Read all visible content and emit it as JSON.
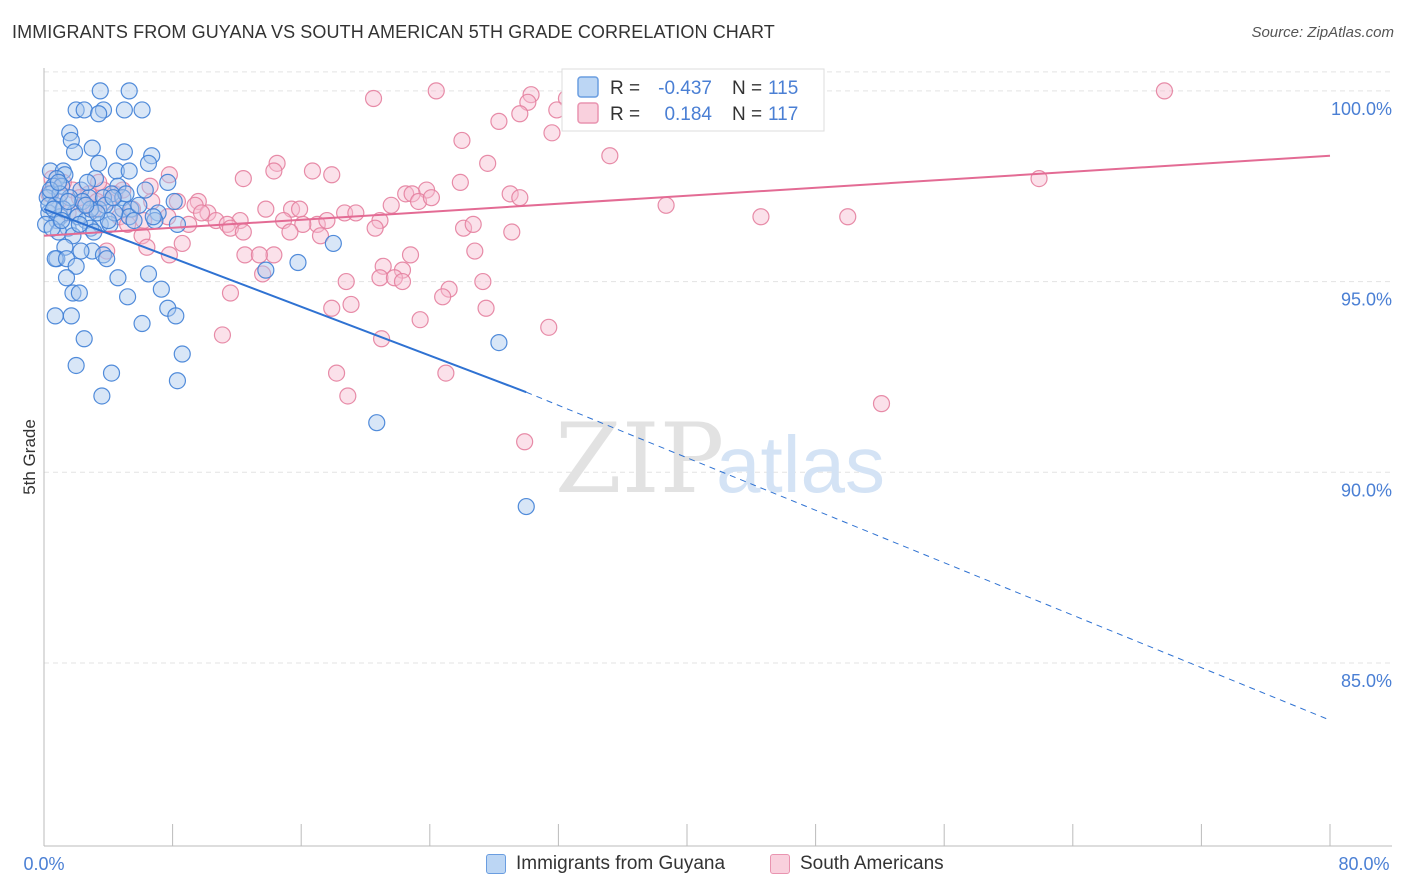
{
  "title": "IMMIGRANTS FROM GUYANA VS SOUTH AMERICAN 5TH GRADE CORRELATION CHART",
  "source": "Source: ZipAtlas.com",
  "watermark": {
    "zip": "ZIP",
    "atlas": "atlas"
  },
  "colors": {
    "blue_fill": "#a8c8ee",
    "blue_stroke": "#3f7fd6",
    "blue_line": "#2f72d2",
    "pink_fill": "#f6bdd0",
    "pink_stroke": "#e4809f",
    "pink_line": "#e36b94",
    "axis_label": "#4a7fd4",
    "grid": "#e3e3e3"
  },
  "legend": {
    "blue": {
      "r_label": "R =",
      "r_value": "-0.437",
      "n_label": "N =",
      "n_value": "115"
    },
    "pink": {
      "r_label": "R =",
      "r_value": "0.184",
      "n_label": "N =",
      "n_value": "117"
    }
  },
  "bottom_legend": {
    "blue_label": "Immigrants from Guyana",
    "pink_label": "South Americans"
  },
  "chart_data": {
    "type": "scatter",
    "title": "IMMIGRANTS FROM GUYANA VS SOUTH AMERICAN 5TH GRADE CORRELATION CHART",
    "xlabel": "",
    "ylabel": "5th Grade",
    "xlim": [
      0,
      80
    ],
    "ylim": [
      80.2,
      100.6
    ],
    "x_tick_labels": [
      "0.0%",
      "80.0%"
    ],
    "y_ticks": [
      85,
      90,
      95,
      100
    ],
    "y_tick_labels": [
      "85.0%",
      "90.0%",
      "95.0%",
      "100.0%"
    ],
    "grid": true,
    "legend_position": "top-center",
    "series": [
      {
        "name": "Immigrants from Guyana",
        "color": "#3f7fd6",
        "trend": {
          "x1": 0.0,
          "y1": 96.9,
          "x2": 30.0,
          "y2": 92.1,
          "dashed_to_x": 80.0,
          "dashed_to_y": 83.5
        },
        "points": [
          [
            3.5,
            100.0
          ],
          [
            5.3,
            100.0
          ],
          [
            3.7,
            99.5
          ],
          [
            2.0,
            99.5
          ],
          [
            2.5,
            99.5
          ],
          [
            5.0,
            99.5
          ],
          [
            6.1,
            99.5
          ],
          [
            3.4,
            99.4
          ],
          [
            1.6,
            98.9
          ],
          [
            1.7,
            98.7
          ],
          [
            3.0,
            98.5
          ],
          [
            1.9,
            98.4
          ],
          [
            5.0,
            98.4
          ],
          [
            6.7,
            98.3
          ],
          [
            6.5,
            98.1
          ],
          [
            3.4,
            98.1
          ],
          [
            0.4,
            97.9
          ],
          [
            1.2,
            97.9
          ],
          [
            4.5,
            97.9
          ],
          [
            5.3,
            97.9
          ],
          [
            1.3,
            97.8
          ],
          [
            0.8,
            97.7
          ],
          [
            3.2,
            97.7
          ],
          [
            7.7,
            97.6
          ],
          [
            0.6,
            97.5
          ],
          [
            1.1,
            97.5
          ],
          [
            4.6,
            97.5
          ],
          [
            6.3,
            97.4
          ],
          [
            2.3,
            97.4
          ],
          [
            0.4,
            97.3
          ],
          [
            4.2,
            97.3
          ],
          [
            4.9,
            97.2
          ],
          [
            0.2,
            97.2
          ],
          [
            1.6,
            97.2
          ],
          [
            2.8,
            97.2
          ],
          [
            3.7,
            97.2
          ],
          [
            8.1,
            97.1
          ],
          [
            0.7,
            97.0
          ],
          [
            4.9,
            96.9
          ],
          [
            5.4,
            96.9
          ],
          [
            3.4,
            96.9
          ],
          [
            7.1,
            96.8
          ],
          [
            0.3,
            96.8
          ],
          [
            1.9,
            96.8
          ],
          [
            5.3,
            96.7
          ],
          [
            2.1,
            96.7
          ],
          [
            1.0,
            96.7
          ],
          [
            2.6,
            96.6
          ],
          [
            0.8,
            96.6
          ],
          [
            5.6,
            96.6
          ],
          [
            8.3,
            96.5
          ],
          [
            0.1,
            96.5
          ],
          [
            3.5,
            96.5
          ],
          [
            4.1,
            96.5
          ],
          [
            2.9,
            96.4
          ],
          [
            1.5,
            96.4
          ],
          [
            0.9,
            96.3
          ],
          [
            1.8,
            96.2
          ],
          [
            18.0,
            96.0
          ],
          [
            1.3,
            95.9
          ],
          [
            3.0,
            95.8
          ],
          [
            2.3,
            95.8
          ],
          [
            3.7,
            95.7
          ],
          [
            0.8,
            95.6
          ],
          [
            3.9,
            95.6
          ],
          [
            0.7,
            95.6
          ],
          [
            1.4,
            95.6
          ],
          [
            15.8,
            95.5
          ],
          [
            2.0,
            95.4
          ],
          [
            6.5,
            95.2
          ],
          [
            13.8,
            95.3
          ],
          [
            1.4,
            95.1
          ],
          [
            4.6,
            95.1
          ],
          [
            7.3,
            94.8
          ],
          [
            1.8,
            94.7
          ],
          [
            2.2,
            94.7
          ],
          [
            5.2,
            94.6
          ],
          [
            7.7,
            94.3
          ],
          [
            0.7,
            94.1
          ],
          [
            1.7,
            94.1
          ],
          [
            8.2,
            94.1
          ],
          [
            6.1,
            93.9
          ],
          [
            2.5,
            93.5
          ],
          [
            28.3,
            93.4
          ],
          [
            8.6,
            93.1
          ],
          [
            2.0,
            92.8
          ],
          [
            4.2,
            92.6
          ],
          [
            8.3,
            92.4
          ],
          [
            3.6,
            92.0
          ],
          [
            20.7,
            91.3
          ],
          [
            30.0,
            89.1
          ],
          [
            0.3,
            97.0
          ],
          [
            1.2,
            96.9
          ],
          [
            2.7,
            97.6
          ],
          [
            5.9,
            97.0
          ],
          [
            3.1,
            96.3
          ],
          [
            0.5,
            96.4
          ],
          [
            4.4,
            96.8
          ],
          [
            6.9,
            96.6
          ],
          [
            2.4,
            97.1
          ],
          [
            1.0,
            97.3
          ],
          [
            3.8,
            97.0
          ],
          [
            0.6,
            96.9
          ],
          [
            2.2,
            96.5
          ],
          [
            1.5,
            97.1
          ],
          [
            4.0,
            96.6
          ],
          [
            0.4,
            97.4
          ],
          [
            6.8,
            96.7
          ],
          [
            2.9,
            96.9
          ],
          [
            1.1,
            96.6
          ],
          [
            3.3,
            96.8
          ],
          [
            5.1,
            97.3
          ],
          [
            0.9,
            97.6
          ],
          [
            2.6,
            97.0
          ],
          [
            4.3,
            97.2
          ]
        ]
      },
      {
        "name": "South Americans",
        "color": "#e4809f",
        "trend": {
          "x1": 0.0,
          "y1": 96.2,
          "x2": 80.0,
          "y2": 98.3
        },
        "points": [
          [
            24.4,
            100.0
          ],
          [
            30.3,
            99.9
          ],
          [
            69.7,
            100.0
          ],
          [
            20.5,
            99.8
          ],
          [
            32.5,
            99.8
          ],
          [
            34.0,
            99.9
          ],
          [
            36.8,
            99.8
          ],
          [
            30.1,
            99.7
          ],
          [
            31.9,
            99.5
          ],
          [
            29.6,
            99.4
          ],
          [
            28.3,
            99.2
          ],
          [
            31.6,
            98.9
          ],
          [
            26.0,
            98.7
          ],
          [
            35.2,
            98.3
          ],
          [
            14.5,
            98.1
          ],
          [
            27.6,
            98.1
          ],
          [
            14.3,
            97.9
          ],
          [
            16.7,
            97.9
          ],
          [
            7.8,
            97.8
          ],
          [
            17.9,
            97.8
          ],
          [
            61.9,
            97.7
          ],
          [
            12.4,
            97.7
          ],
          [
            25.9,
            97.6
          ],
          [
            6.6,
            97.5
          ],
          [
            23.8,
            97.4
          ],
          [
            3.7,
            97.4
          ],
          [
            22.5,
            97.3
          ],
          [
            22.9,
            97.3
          ],
          [
            2.8,
            97.3
          ],
          [
            4.4,
            97.3
          ],
          [
            29.0,
            97.3
          ],
          [
            29.6,
            97.2
          ],
          [
            8.3,
            97.1
          ],
          [
            4.0,
            97.1
          ],
          [
            9.6,
            97.1
          ],
          [
            3.3,
            97.1
          ],
          [
            6.7,
            97.1
          ],
          [
            23.3,
            97.1
          ],
          [
            24.1,
            97.2
          ],
          [
            9.4,
            97.0
          ],
          [
            21.6,
            97.0
          ],
          [
            38.7,
            97.0
          ],
          [
            15.4,
            96.9
          ],
          [
            15.9,
            96.9
          ],
          [
            10.2,
            96.8
          ],
          [
            13.8,
            96.9
          ],
          [
            9.8,
            96.8
          ],
          [
            18.7,
            96.8
          ],
          [
            19.4,
            96.8
          ],
          [
            20.9,
            96.6
          ],
          [
            7.7,
            96.7
          ],
          [
            4.7,
            96.7
          ],
          [
            12.2,
            96.6
          ],
          [
            44.6,
            96.7
          ],
          [
            50.0,
            96.7
          ],
          [
            10.7,
            96.6
          ],
          [
            14.9,
            96.6
          ],
          [
            17.0,
            96.5
          ],
          [
            17.6,
            96.6
          ],
          [
            11.4,
            96.5
          ],
          [
            16.1,
            96.5
          ],
          [
            9.0,
            96.5
          ],
          [
            11.6,
            96.4
          ],
          [
            26.1,
            96.4
          ],
          [
            26.7,
            96.5
          ],
          [
            20.6,
            96.4
          ],
          [
            12.4,
            96.3
          ],
          [
            29.1,
            96.3
          ],
          [
            15.3,
            96.3
          ],
          [
            6.1,
            96.2
          ],
          [
            17.2,
            96.2
          ],
          [
            8.6,
            96.0
          ],
          [
            6.4,
            95.9
          ],
          [
            3.9,
            95.8
          ],
          [
            26.8,
            95.8
          ],
          [
            14.3,
            95.7
          ],
          [
            7.8,
            95.7
          ],
          [
            22.8,
            95.7
          ],
          [
            12.5,
            95.7
          ],
          [
            13.4,
            95.7
          ],
          [
            21.1,
            95.4
          ],
          [
            22.3,
            95.3
          ],
          [
            13.6,
            95.2
          ],
          [
            20.9,
            95.1
          ],
          [
            21.8,
            95.1
          ],
          [
            22.3,
            95.0
          ],
          [
            27.3,
            95.0
          ],
          [
            18.8,
            95.0
          ],
          [
            11.6,
            94.7
          ],
          [
            25.2,
            94.8
          ],
          [
            24.8,
            94.6
          ],
          [
            19.1,
            94.4
          ],
          [
            17.9,
            94.3
          ],
          [
            27.5,
            94.3
          ],
          [
            23.4,
            94.0
          ],
          [
            31.4,
            93.8
          ],
          [
            11.1,
            93.6
          ],
          [
            21.0,
            93.5
          ],
          [
            18.2,
            92.6
          ],
          [
            25.0,
            92.6
          ],
          [
            18.9,
            92.0
          ],
          [
            52.1,
            91.8
          ],
          [
            29.9,
            90.8
          ],
          [
            1.8,
            97.4
          ],
          [
            0.5,
            97.7
          ],
          [
            2.5,
            97.0
          ],
          [
            1.2,
            97.6
          ],
          [
            5.5,
            96.9
          ],
          [
            0.9,
            97.1
          ],
          [
            3.1,
            96.9
          ],
          [
            2.2,
            97.2
          ],
          [
            4.9,
            97.4
          ],
          [
            1.5,
            96.8
          ],
          [
            6.2,
            96.6
          ],
          [
            0.3,
            97.3
          ],
          [
            3.4,
            97.6
          ],
          [
            5.2,
            96.5
          ]
        ]
      }
    ]
  }
}
